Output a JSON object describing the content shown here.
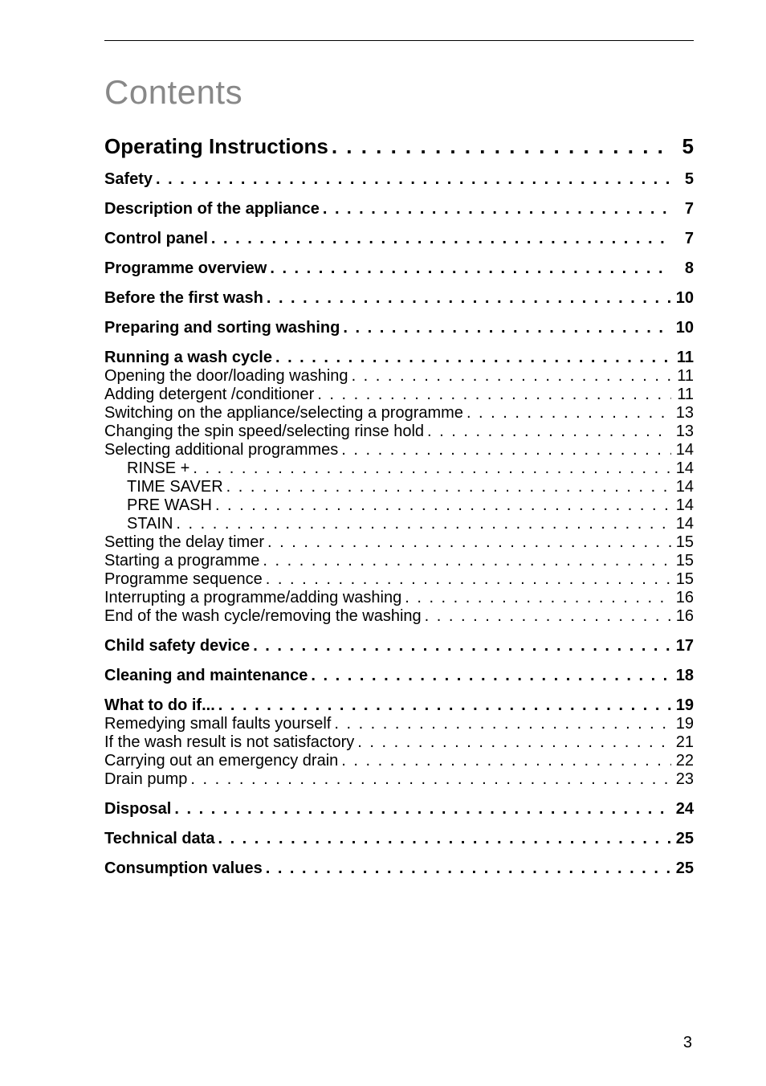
{
  "title": "Contents",
  "pageNumber": "3",
  "entries": [
    {
      "label": "Operating Instructions",
      "page": "5",
      "level": 0,
      "bold": true,
      "spaceBefore": 0
    },
    {
      "label": "Safety",
      "page": "5",
      "level": 1,
      "bold": true,
      "spaceBefore": 14
    },
    {
      "label": "Description of the appliance",
      "page": "7",
      "level": 1,
      "bold": true,
      "spaceBefore": 14
    },
    {
      "label": "Control panel",
      "page": "7",
      "level": 1,
      "bold": true,
      "spaceBefore": 14
    },
    {
      "label": "Programme overview",
      "page": "8",
      "level": 1,
      "bold": true,
      "spaceBefore": 14
    },
    {
      "label": "Before the first wash",
      "page": "10",
      "level": 1,
      "bold": true,
      "spaceBefore": 14
    },
    {
      "label": "Preparing and sorting washing",
      "page": "10",
      "level": 1,
      "bold": true,
      "spaceBefore": 14
    },
    {
      "label": "Running a wash cycle",
      "page": "11",
      "level": 1,
      "bold": true,
      "spaceBefore": 14
    },
    {
      "label": "Opening the door/loading washing",
      "page": "11",
      "level": 2,
      "bold": false,
      "spaceBefore": 0
    },
    {
      "label": "Adding detergent /conditioner",
      "page": "11",
      "level": 2,
      "bold": false,
      "spaceBefore": 0
    },
    {
      "label": "Switching on the appliance/selecting a programme",
      "page": "13",
      "level": 2,
      "bold": false,
      "spaceBefore": 0
    },
    {
      "label": "Changing the spin speed/selecting rinse hold",
      "page": "13",
      "level": 2,
      "bold": false,
      "spaceBefore": 0
    },
    {
      "label": "Selecting additional programmes",
      "page": "14",
      "level": 2,
      "bold": false,
      "spaceBefore": 0
    },
    {
      "label": "RINSE +",
      "page": "14",
      "level": 3,
      "bold": false,
      "spaceBefore": 0
    },
    {
      "label": "TIME SAVER",
      "page": "14",
      "level": 3,
      "bold": false,
      "spaceBefore": 0
    },
    {
      "label": "PRE WASH",
      "page": "14",
      "level": 3,
      "bold": false,
      "spaceBefore": 0
    },
    {
      "label": "STAIN",
      "page": "14",
      "level": 3,
      "bold": false,
      "spaceBefore": 0
    },
    {
      "label": "Setting the delay timer",
      "page": "15",
      "level": 2,
      "bold": false,
      "spaceBefore": 0
    },
    {
      "label": "Starting a programme",
      "page": "15",
      "level": 2,
      "bold": false,
      "spaceBefore": 0
    },
    {
      "label": "Programme sequence",
      "page": "15",
      "level": 2,
      "bold": false,
      "spaceBefore": 0
    },
    {
      "label": "Interrupting a programme/adding washing",
      "page": "16",
      "level": 2,
      "bold": false,
      "spaceBefore": 0
    },
    {
      "label": "End of the wash cycle/removing the washing",
      "page": "16",
      "level": 2,
      "bold": false,
      "spaceBefore": 0
    },
    {
      "label": "Child safety device",
      "page": "17",
      "level": 1,
      "bold": true,
      "spaceBefore": 14
    },
    {
      "label": "Cleaning and maintenance",
      "page": "18",
      "level": 1,
      "bold": true,
      "spaceBefore": 14
    },
    {
      "label": "What to do if...",
      "page": "19",
      "level": 1,
      "bold": true,
      "spaceBefore": 14
    },
    {
      "label": "Remedying small faults yourself",
      "page": "19",
      "level": 2,
      "bold": false,
      "spaceBefore": 0
    },
    {
      "label": "If the wash result is not satisfactory",
      "page": "21",
      "level": 2,
      "bold": false,
      "spaceBefore": 0
    },
    {
      "label": "Carrying out an emergency drain",
      "page": "22",
      "level": 2,
      "bold": false,
      "spaceBefore": 0
    },
    {
      "label": "Drain pump",
      "page": "23",
      "level": 2,
      "bold": false,
      "spaceBefore": 0
    },
    {
      "label": "Disposal",
      "page": "24",
      "level": 1,
      "bold": true,
      "spaceBefore": 14
    },
    {
      "label": "Technical data",
      "page": "25",
      "level": 1,
      "bold": true,
      "spaceBefore": 14
    },
    {
      "label": "Consumption values",
      "page": "25",
      "level": 1,
      "bold": true,
      "spaceBefore": 14
    }
  ],
  "style": {
    "titleColor": "#888888",
    "titleFontSize": 42,
    "level0FontSize": 26,
    "level1FontSize": 20,
    "level2FontSize": 20,
    "level3FontSize": 20,
    "level3Indent": 28,
    "pageWidth": 954,
    "pageHeight": 1352,
    "dotsChar": "."
  }
}
